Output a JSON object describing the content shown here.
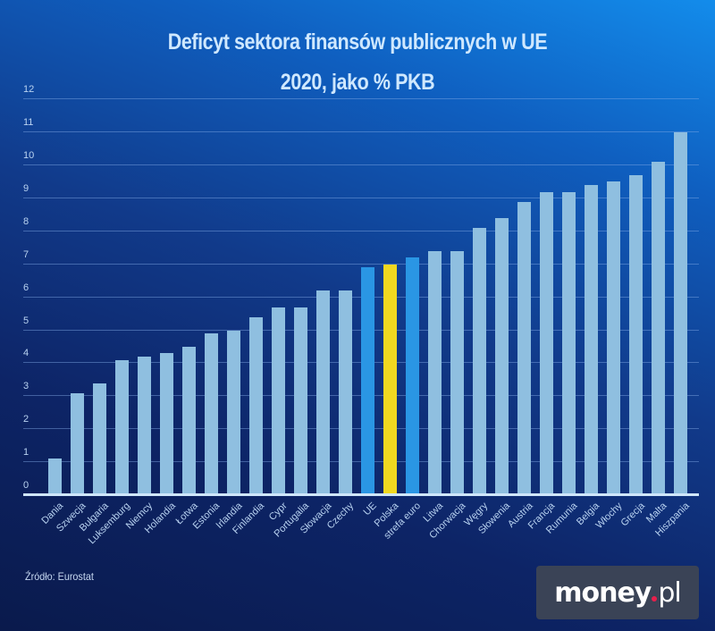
{
  "header": {
    "title_line1": "Deficyt sektora finansów publicznych w UE",
    "title_line2": "2020, jako % PKB"
  },
  "footer": {
    "source": "Źródło: Eurostat",
    "logo_main": "money",
    "logo_tld": "pl"
  },
  "colors": {
    "default_bar": "#8fbfe0",
    "aggregate_bar": "#2a96e4",
    "highlight_bar": "#f0d820",
    "background_top_right": "#138ceb",
    "background_bottom_left": "#0a1a4c"
  },
  "chart_data": {
    "type": "bar",
    "title": "Deficyt sektora finansów publicznych w UE 2020, jako % PKB",
    "xlabel": "",
    "ylabel": "",
    "ylim": [
      0,
      12
    ],
    "yticks": [
      0,
      1,
      2,
      3,
      4,
      5,
      6,
      7,
      8,
      9,
      10,
      11,
      12
    ],
    "grid": true,
    "legend": null,
    "categories": [
      "Dania",
      "Szwecja",
      "Bułgaria",
      "Luksemburg",
      "Niemcy",
      "Holandia",
      "Łotwa",
      "Estonia",
      "Irlandia",
      "Finlandia",
      "Cypr",
      "Portugalia",
      "Słowacja",
      "Czechy",
      "UE",
      "Polska",
      "strefa euro",
      "Litwa",
      "Chorwacja",
      "Węgry",
      "Słowenia",
      "Austria",
      "Francja",
      "Rumunia",
      "Belgia",
      "Włochy",
      "Grecja",
      "Malta",
      "Hiszpania"
    ],
    "values": [
      1.1,
      3.1,
      3.4,
      4.1,
      4.2,
      4.3,
      4.5,
      4.9,
      5.0,
      5.4,
      5.7,
      5.7,
      6.2,
      6.2,
      6.9,
      7.0,
      7.2,
      7.4,
      7.4,
      8.1,
      8.4,
      8.9,
      9.2,
      9.2,
      9.4,
      9.5,
      9.7,
      10.1,
      11.0
    ],
    "bar_kind": [
      "d",
      "d",
      "d",
      "d",
      "d",
      "d",
      "d",
      "d",
      "d",
      "d",
      "d",
      "d",
      "d",
      "d",
      "agg",
      "hl",
      "agg",
      "d",
      "d",
      "d",
      "d",
      "d",
      "d",
      "d",
      "d",
      "d",
      "d",
      "d",
      "d"
    ],
    "annotations": [
      "Polska highlighted in yellow; UE and strefa euro highlighted in blue"
    ]
  }
}
